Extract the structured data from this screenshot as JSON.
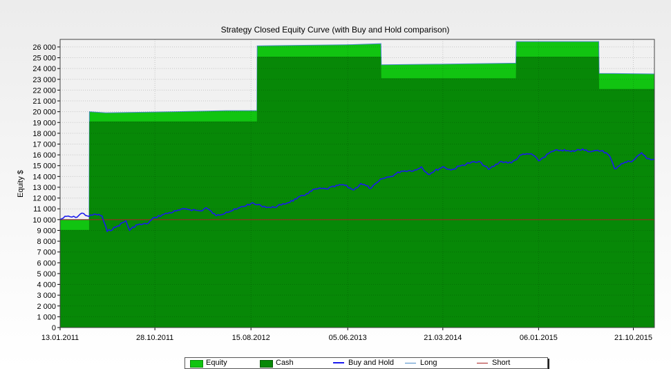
{
  "chart_data": {
    "type": "area",
    "title": "Strategy Closed Equity Curve (with Buy and Hold comparison)",
    "ylabel": "Equity $",
    "xlabel": "",
    "ylim": [
      0,
      26700
    ],
    "xlim": [
      "2011-01-13",
      "2015-12-24"
    ],
    "grid": true,
    "legend_position": "bottom",
    "y_ticks": [
      0,
      1000,
      2000,
      3000,
      4000,
      5000,
      6000,
      7000,
      8000,
      9000,
      10000,
      11000,
      12000,
      13000,
      14000,
      15000,
      16000,
      17000,
      18000,
      19000,
      20000,
      21000,
      22000,
      23000,
      24000,
      25000,
      26000
    ],
    "y_tick_labels": [
      "0",
      "1 000",
      "2 000",
      "3 000",
      "4 000",
      "5 000",
      "6 000",
      "7 000",
      "8 000",
      "9 000",
      "10 000",
      "11 000",
      "12 000",
      "13 000",
      "14 000",
      "15 000",
      "16 000",
      "17 000",
      "18 000",
      "19 000",
      "20 000",
      "21 000",
      "22 000",
      "23 000",
      "24 000",
      "25 000",
      "26 000"
    ],
    "x_ticks": [
      "2011-01-13",
      "2011-10-28",
      "2012-08-15",
      "2013-06-05",
      "2014-03-21",
      "2015-01-06",
      "2015-10-21"
    ],
    "x_tick_labels": [
      "13.01.2011",
      "28.10.2011",
      "15.08.2012",
      "05.06.2013",
      "21.03.2014",
      "06.01.2015",
      "21.10.2015"
    ],
    "series": [
      {
        "name": "Equity",
        "color": "#11c411",
        "x": [
          "2011-01-13",
          "2011-04-11",
          "2011-04-12",
          "2011-06-01",
          "2012-01-01",
          "2012-06-01",
          "2012-09-02",
          "2012-09-03",
          "2013-01-01",
          "2013-06-01",
          "2013-09-14",
          "2013-09-15",
          "2014-03-01",
          "2014-10-29",
          "2014-10-30",
          "2015-06-01",
          "2015-07-08",
          "2015-07-09",
          "2015-12-24"
        ],
        "y": [
          10000,
          10000,
          20000,
          19900,
          20000,
          20100,
          20100,
          26100,
          26150,
          26200,
          26300,
          24350,
          24400,
          24500,
          26500,
          26500,
          26500,
          23550,
          23500
        ]
      },
      {
        "name": "Cash",
        "color": "#078807",
        "x": [
          "2011-01-13",
          "2011-04-11",
          "2011-04-12",
          "2012-09-02",
          "2012-09-03",
          "2013-09-14",
          "2013-09-15",
          "2014-10-29",
          "2014-10-30",
          "2015-07-08",
          "2015-07-09",
          "2015-12-24"
        ],
        "y": [
          9050,
          9050,
          19100,
          19100,
          25100,
          25100,
          23100,
          23100,
          25100,
          25100,
          22100,
          22100
        ]
      },
      {
        "name": "Buy and Hold",
        "color": "#1a1aee",
        "x": [
          "2011-01-13",
          "2011-02-01",
          "2011-03-01",
          "2011-03-20",
          "2011-04-11",
          "2011-05-01",
          "2011-05-20",
          "2011-06-05",
          "2011-07-01",
          "2011-08-01",
          "2011-08-12",
          "2011-09-01",
          "2011-10-03",
          "2011-10-28",
          "2011-11-25",
          "2012-01-01",
          "2012-02-01",
          "2012-03-15",
          "2012-04-01",
          "2012-05-01",
          "2012-06-01",
          "2012-07-01",
          "2012-08-15",
          "2012-09-14",
          "2012-10-15",
          "2012-11-15",
          "2012-12-31",
          "2013-01-31",
          "2013-03-01",
          "2013-04-01",
          "2013-05-21",
          "2013-06-24",
          "2013-07-15",
          "2013-08-15",
          "2013-09-18",
          "2013-10-15",
          "2013-11-15",
          "2013-12-31",
          "2014-01-15",
          "2014-02-04",
          "2014-03-21",
          "2014-04-15",
          "2014-05-15",
          "2014-06-15",
          "2014-07-15",
          "2014-08-07",
          "2014-09-15",
          "2014-10-15",
          "2014-11-15",
          "2014-12-15",
          "2015-01-06",
          "2015-02-15",
          "2015-03-15",
          "2015-04-15",
          "2015-05-20",
          "2015-06-15",
          "2015-07-20",
          "2015-08-10",
          "2015-08-25",
          "2015-09-15",
          "2015-10-21",
          "2015-11-15",
          "2015-12-01",
          "2015-12-24"
        ],
        "y": [
          10000,
          10300,
          10200,
          10600,
          10300,
          10500,
          10350,
          8900,
          9300,
          9900,
          9000,
          9500,
          9600,
          10200,
          10500,
          10800,
          11000,
          10800,
          11100,
          10350,
          10700,
          10950,
          11500,
          11300,
          11100,
          11350,
          11900,
          12400,
          12850,
          12850,
          13250,
          12750,
          13350,
          12900,
          13800,
          14000,
          14500,
          14600,
          14900,
          14200,
          14900,
          14600,
          15000,
          15300,
          15300,
          14650,
          15400,
          15250,
          16000,
          16100,
          15450,
          16300,
          16450,
          16300,
          16550,
          16300,
          16400,
          15900,
          14700,
          15200,
          15500,
          16200,
          15650,
          15600
        ]
      },
      {
        "name": "Long",
        "color": "#4a8ac8"
      },
      {
        "name": "Short",
        "color": "#aa2222",
        "x": [
          "2011-01-13",
          "2015-12-24"
        ],
        "y": [
          10000,
          10000
        ]
      }
    ]
  }
}
